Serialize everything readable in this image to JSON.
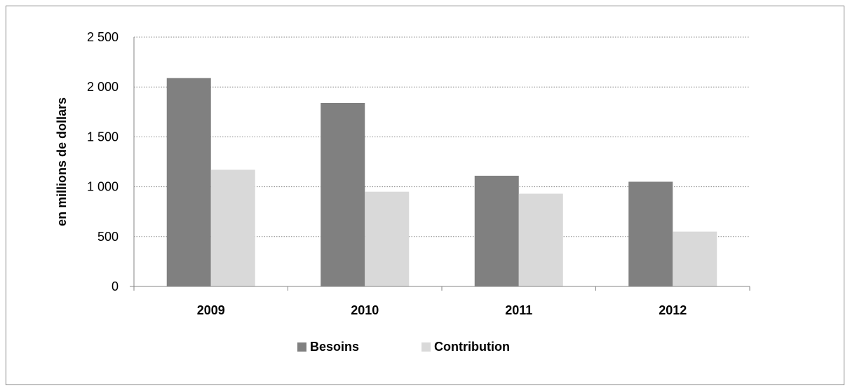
{
  "chart_data": {
    "type": "bar",
    "categories": [
      "2009",
      "2010",
      "2011",
      "2012"
    ],
    "series": [
      {
        "name": "Besoins",
        "values": [
          2090,
          1840,
          1110,
          1050
        ]
      },
      {
        "name": "Contribution",
        "values": [
          1170,
          950,
          930,
          550
        ]
      }
    ],
    "ylabel": "en millions de dollars",
    "ylim": [
      0,
      2500
    ],
    "yticks": [
      0,
      500,
      1000,
      1500,
      2000,
      2500
    ],
    "ytick_labels": [
      "0",
      "500",
      "1 000",
      "1 500",
      "2 000",
      "2 500"
    ],
    "grid": true,
    "legend_position": "bottom",
    "colors": {
      "Besoins": "#808080",
      "Contribution": "#d9d9d9",
      "grid": "#868686",
      "axis": "#868686"
    }
  }
}
